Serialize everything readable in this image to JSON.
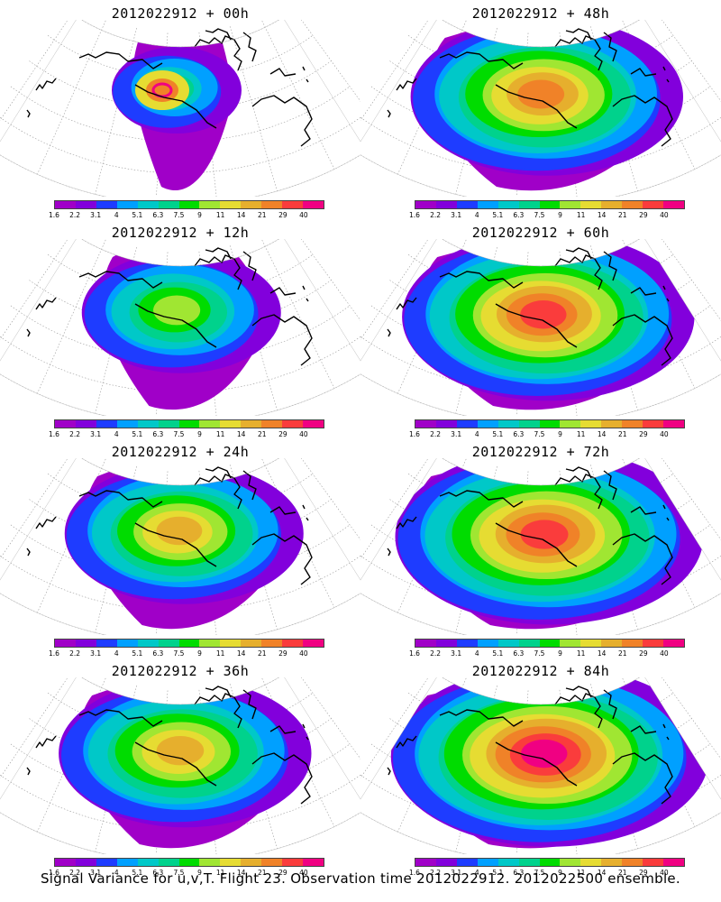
{
  "figure": {
    "footer": "Signal Variance for u,v,T. Flight 23. Observation time 2012022912. 2012022500 ensemble.",
    "colorbar": {
      "labels": [
        "1.6",
        "2.2",
        "3.1",
        "4",
        "5.1",
        "6.3",
        "7.5",
        "9",
        "11",
        "14",
        "21",
        "29",
        "40"
      ],
      "colors": [
        "#a000c8",
        "#8200dc",
        "#1e3cff",
        "#00a0ff",
        "#00c8c8",
        "#00d28c",
        "#00dc00",
        "#a0e632",
        "#e6dc32",
        "#e6af2d",
        "#f08228",
        "#fa3c3c",
        "#f00082"
      ]
    },
    "panels": [
      {
        "title": "2012022912 + 00h",
        "intensity": 0.0
      },
      {
        "title": "2012022912 + 48h",
        "intensity": 0.72
      },
      {
        "title": "2012022912 + 12h",
        "intensity": 0.35
      },
      {
        "title": "2012022912 + 60h",
        "intensity": 0.82
      },
      {
        "title": "2012022912 + 24h",
        "intensity": 0.55
      },
      {
        "title": "2012022912 + 72h",
        "intensity": 0.9
      },
      {
        "title": "2012022912 + 36h",
        "intensity": 0.62
      },
      {
        "title": "2012022912 + 84h",
        "intensity": 0.95
      }
    ]
  }
}
